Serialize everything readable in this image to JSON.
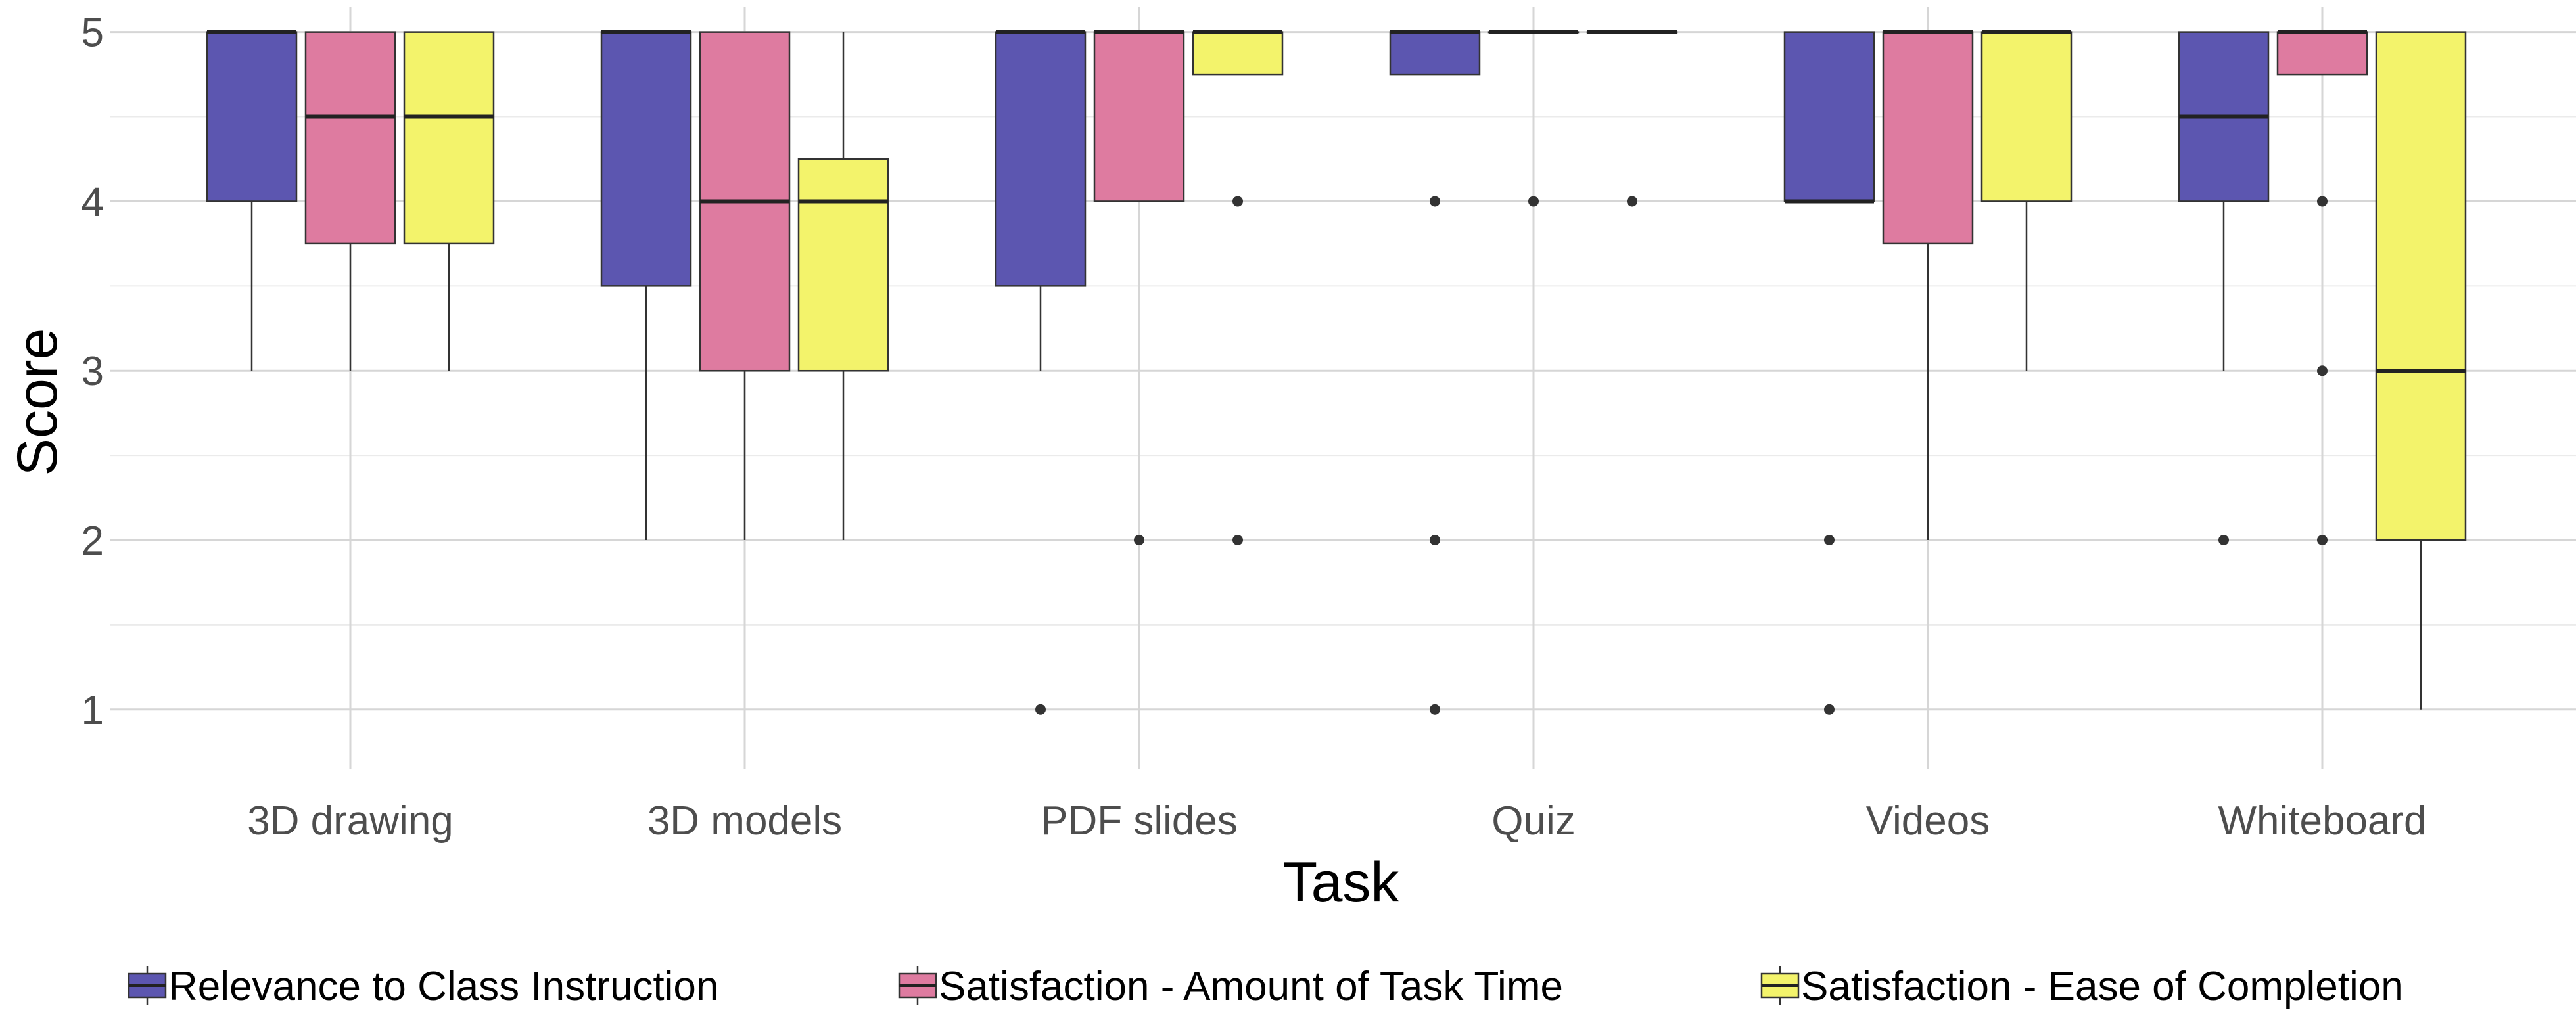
{
  "chart_data": {
    "type": "boxplot",
    "xlabel": "Task",
    "ylabel": "Score",
    "ylim": [
      0.65,
      5.15
    ],
    "yticks": [
      1,
      2,
      3,
      4,
      5
    ],
    "grid": true,
    "legend_position": "bottom",
    "categories": [
      "3D drawing",
      "3D models",
      "PDF slides",
      "Quiz",
      "Videos",
      "Whiteboard"
    ],
    "series": [
      {
        "name": "Relevance to Class Instruction",
        "color": "#5c56b0",
        "boxes": [
          {
            "whisker_low": 3,
            "q1": 4,
            "median": 5,
            "q3": 5,
            "whisker_high": 5,
            "outliers": []
          },
          {
            "whisker_low": 2,
            "q1": 3.5,
            "median": 5,
            "q3": 5,
            "whisker_high": 5,
            "outliers": []
          },
          {
            "whisker_low": 3,
            "q1": 3.5,
            "median": 5,
            "q3": 5,
            "whisker_high": 5,
            "outliers": [
              1
            ]
          },
          {
            "whisker_low": 4.75,
            "q1": 4.75,
            "median": 5,
            "q3": 5,
            "whisker_high": 5,
            "outliers": [
              4,
              2,
              1
            ]
          },
          {
            "whisker_low": 4,
            "q1": 4,
            "median": 4,
            "q3": 5,
            "whisker_high": 5,
            "outliers": [
              2,
              1
            ]
          },
          {
            "whisker_low": 3,
            "q1": 4,
            "median": 4.5,
            "q3": 5,
            "whisker_high": 5,
            "outliers": [
              2
            ]
          }
        ]
      },
      {
        "name": "Satisfaction - Amount of Task Time",
        "color": "#de7ba0",
        "boxes": [
          {
            "whisker_low": 3,
            "q1": 3.75,
            "median": 4.5,
            "q3": 5,
            "whisker_high": 5,
            "outliers": []
          },
          {
            "whisker_low": 2,
            "q1": 3,
            "median": 4,
            "q3": 5,
            "whisker_high": 5,
            "outliers": []
          },
          {
            "whisker_low": 4,
            "q1": 4,
            "median": 5,
            "q3": 5,
            "whisker_high": 5,
            "outliers": [
              2
            ]
          },
          {
            "whisker_low": 5,
            "q1": 5,
            "median": 5,
            "q3": 5,
            "whisker_high": 5,
            "outliers": [
              4
            ]
          },
          {
            "whisker_low": 2,
            "q1": 3.75,
            "median": 5,
            "q3": 5,
            "whisker_high": 5,
            "outliers": []
          },
          {
            "whisker_low": 4.75,
            "q1": 4.75,
            "median": 5,
            "q3": 5,
            "whisker_high": 5,
            "outliers": [
              4,
              3,
              2
            ]
          }
        ]
      },
      {
        "name": "Satisfaction - Ease of Completion",
        "color": "#f3f36b",
        "boxes": [
          {
            "whisker_low": 3,
            "q1": 3.75,
            "median": 4.5,
            "q3": 5,
            "whisker_high": 5,
            "outliers": []
          },
          {
            "whisker_low": 2,
            "q1": 3,
            "median": 4,
            "q3": 4.25,
            "whisker_high": 5,
            "outliers": []
          },
          {
            "whisker_low": 4.75,
            "q1": 4.75,
            "median": 5,
            "q3": 5,
            "whisker_high": 5,
            "outliers": [
              4,
              2
            ]
          },
          {
            "whisker_low": 5,
            "q1": 5,
            "median": 5,
            "q3": 5,
            "whisker_high": 5,
            "outliers": [
              4
            ]
          },
          {
            "whisker_low": 3,
            "q1": 4,
            "median": 5,
            "q3": 5,
            "whisker_high": 5,
            "outliers": []
          },
          {
            "whisker_low": 1,
            "q1": 2,
            "median": 3,
            "q3": 5,
            "whisker_high": 5,
            "outliers": []
          }
        ]
      }
    ]
  }
}
